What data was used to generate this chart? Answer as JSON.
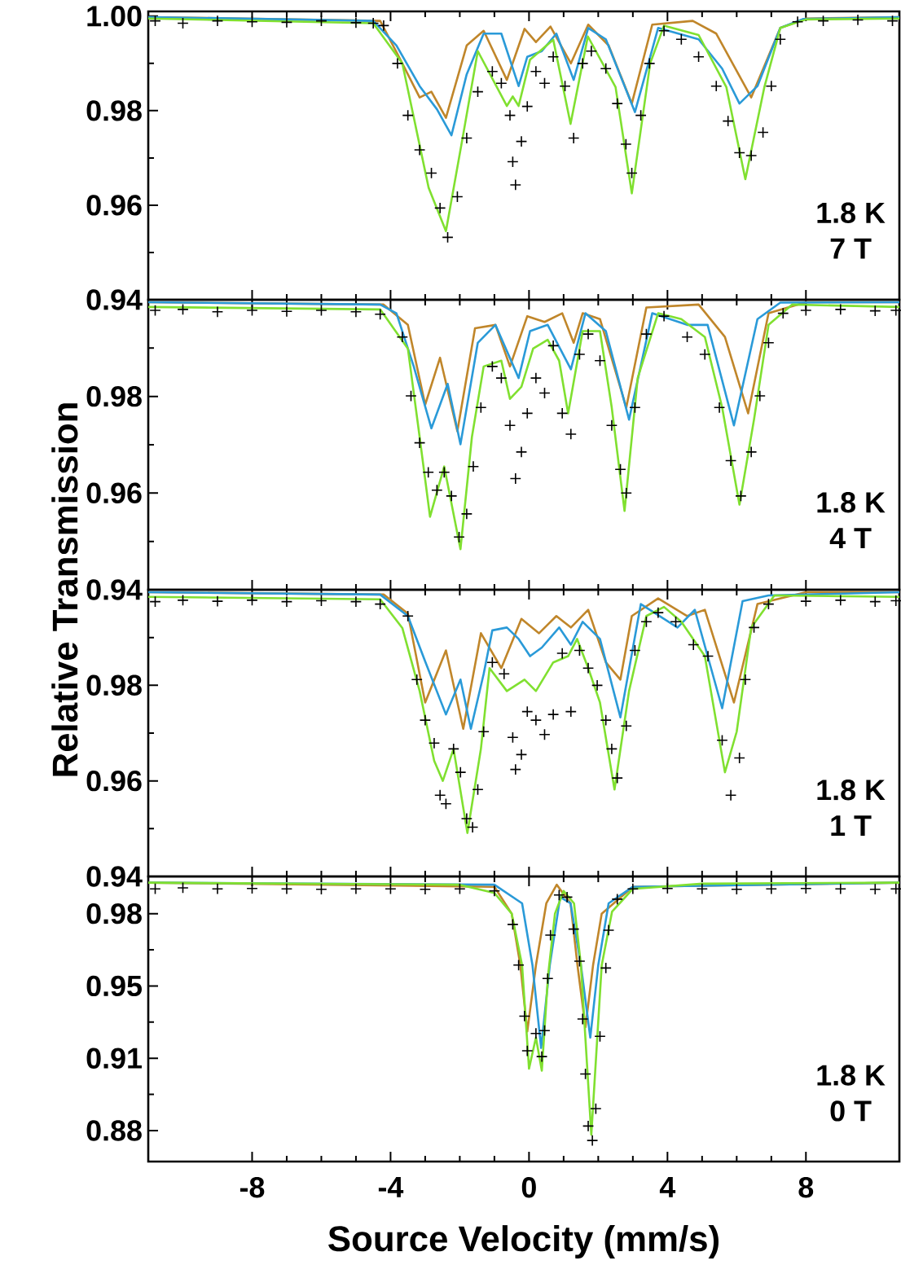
{
  "chart_data": [
    {
      "type": "line",
      "xlim": [
        -11,
        10.7
      ],
      "xticks": [
        -8,
        -4,
        0,
        4,
        8
      ],
      "ylim": [
        0.94,
        1.001
      ],
      "yticks": [
        0.94,
        0.96,
        0.98,
        {
          "value": 1.0,
          "label": "1.00"
        }
      ],
      "tick_labels": "y",
      "annotations": [
        "1.8 K",
        "7 T"
      ],
      "series": [
        {
          "type": "scatter",
          "marker": "cross",
          "color": "#000000",
          "x": [
            -10.8,
            -10,
            -9,
            -8,
            -7,
            -6,
            -5,
            -4.5,
            -4.2,
            -3.8,
            -3.5,
            -3.16,
            -2.82,
            -2.57,
            -2.35,
            -2.07,
            -1.8,
            -1.48,
            -1.06,
            -0.8,
            -0.55,
            -0.47,
            -0.39,
            -0.22,
            -0.05,
            0.2,
            0.45,
            0.7,
            1.04,
            1.29,
            1.55,
            1.8,
            2.22,
            2.55,
            2.8,
            2.97,
            3.23,
            3.48,
            3.9,
            4.4,
            4.9,
            5.41,
            5.75,
            6.08,
            6.42,
            6.76,
            7.0,
            7.26,
            7.76,
            8.5,
            9.5,
            10.5
          ],
          "values": [
            0.999,
            0.9985,
            0.999,
            0.9988,
            0.9987,
            0.999,
            0.9986,
            0.9985,
            0.998,
            0.99,
            0.979,
            0.9717,
            0.9668,
            0.9594,
            0.9532,
            0.9618,
            0.9742,
            0.984,
            0.9883,
            0.9858,
            0.979,
            0.9692,
            0.9643,
            0.9735,
            0.9809,
            0.9883,
            0.9858,
            0.9914,
            0.9852,
            0.9742,
            0.99,
            0.9926,
            0.9889,
            0.9815,
            0.9729,
            0.9668,
            0.979,
            0.99,
            0.9969,
            0.9951,
            0.9914,
            0.9852,
            0.9778,
            0.9711,
            0.9705,
            0.9754,
            0.9852,
            0.9951,
            0.9988,
            0.999,
            0.9992,
            0.999
          ]
        },
        {
          "color": "#c0862a",
          "x": [
            -11,
            -4.3,
            -3.66,
            -3.16,
            -2.82,
            -2.4,
            -1.8,
            -1.31,
            -0.64,
            -0.13,
            0.2,
            0.62,
            1.21,
            1.71,
            2.3,
            2.97,
            3.56,
            4.73,
            5.41,
            6.42,
            7.26,
            8,
            10.7
          ],
          "values": [
            0.9998,
            0.999,
            0.99,
            0.9828,
            0.984,
            0.9785,
            0.9938,
            0.9969,
            0.9865,
            0.9973,
            0.9945,
            0.9978,
            0.99,
            0.9982,
            0.9938,
            0.9815,
            0.9982,
            0.999,
            0.9963,
            0.9828,
            0.9975,
            0.9995,
            0.9998
          ]
        },
        {
          "color": "#2a9ad8",
          "x": [
            -11,
            -4.5,
            -3.83,
            -3.16,
            -2.66,
            -2.24,
            -1.8,
            -1.31,
            -0.8,
            -0.3,
            -0.05,
            0.37,
            0.79,
            1.29,
            1.71,
            2.22,
            3.06,
            3.73,
            4.9,
            5.58,
            6.08,
            6.6,
            7.26,
            7.93,
            10.7
          ],
          "values": [
            0.9998,
            0.999,
            0.9938,
            0.9852,
            0.9803,
            0.9748,
            0.9877,
            0.9963,
            0.9963,
            0.9852,
            0.9914,
            0.9926,
            0.9963,
            0.9865,
            0.9975,
            0.9951,
            0.9797,
            0.9975,
            0.9951,
            0.9889,
            0.9815,
            0.9852,
            0.9975,
            0.9994,
            0.9998
          ]
        },
        {
          "color": "#80e030",
          "x": [
            -11,
            -4.5,
            -3.66,
            -2.9,
            -2.4,
            -1.9,
            -1.48,
            -0.64,
            -0.47,
            -0.3,
            0.03,
            0.7,
            1.2,
            1.7,
            2.5,
            2.97,
            3.5,
            3.9,
            4.9,
            5.7,
            6.25,
            6.8,
            7.26,
            8,
            10.7
          ],
          "values": [
            0.9995,
            0.9985,
            0.99,
            0.9637,
            0.9545,
            0.975,
            0.9926,
            0.981,
            0.983,
            0.981,
            0.9908,
            0.995,
            0.9772,
            0.9957,
            0.985,
            0.9625,
            0.99,
            0.998,
            0.996,
            0.985,
            0.9655,
            0.985,
            0.9975,
            0.9993,
            0.9995
          ]
        }
      ]
    },
    {
      "type": "line",
      "xlim": [
        -11,
        10.7
      ],
      "xticks": [
        -8,
        -4,
        0,
        4,
        8
      ],
      "ylim": [
        0.94,
        1.0
      ],
      "yticks": [
        0.94,
        0.96,
        0.98,
        {
          "value": 1.0,
          "label": null
        }
      ],
      "tick_labels": "y",
      "annotations": [
        "1.8 K",
        "4 T"
      ],
      "series": [
        {
          "type": "scatter",
          "marker": "cross",
          "color": "#000000",
          "x": [
            -10.8,
            -10,
            -9,
            -8,
            -7,
            -6,
            -5,
            -4.3,
            -3.66,
            -3.41,
            -3.16,
            -2.91,
            -2.66,
            -2.45,
            -2.24,
            -2.02,
            -1.8,
            -1.61,
            -1.39,
            -1.06,
            -0.8,
            -0.55,
            -0.39,
            -0.22,
            -0.05,
            0.2,
            0.45,
            0.7,
            0.96,
            1.21,
            1.46,
            1.71,
            2.05,
            2.39,
            2.64,
            2.81,
            3.06,
            3.39,
            3.9,
            4.57,
            5.08,
            5.5,
            5.83,
            6.12,
            6.42,
            6.67,
            6.92,
            7.34,
            8,
            9,
            10,
            10.6
          ],
          "values": [
            0.9978,
            0.998,
            0.9975,
            0.9978,
            0.9976,
            0.9978,
            0.9975,
            0.997,
            0.9923,
            0.9801,
            0.9704,
            0.9643,
            0.9606,
            0.9643,
            0.9594,
            0.9509,
            0.9557,
            0.9655,
            0.9777,
            0.9862,
            0.9838,
            0.974,
            0.963,
            0.9685,
            0.9765,
            0.9838,
            0.9807,
            0.9905,
            0.9765,
            0.9722,
            0.9887,
            0.9929,
            0.9874,
            0.974,
            0.9649,
            0.96,
            0.9777,
            0.9929,
            0.9966,
            0.9923,
            0.9887,
            0.9777,
            0.9667,
            0.9594,
            0.9685,
            0.9801,
            0.9911,
            0.9972,
            0.9978,
            0.998,
            0.9977,
            0.9978
          ]
        },
        {
          "color": "#c0862a",
          "x": [
            -11,
            -4.2,
            -3.5,
            -3.0,
            -2.57,
            -2.07,
            -1.56,
            -0.97,
            -0.55,
            -0.05,
            0.45,
            0.96,
            1.29,
            1.55,
            2.05,
            2.81,
            3.39,
            4.9,
            5.66,
            6.33,
            6.92,
            8,
            10.7
          ],
          "values": [
            0.9995,
            0.999,
            0.9948,
            0.9783,
            0.988,
            0.9728,
            0.9941,
            0.9948,
            0.9862,
            0.9966,
            0.9954,
            0.9972,
            0.9911,
            0.9972,
            0.996,
            0.9777,
            0.9984,
            0.999,
            0.9923,
            0.9765,
            0.9972,
            0.9995,
            0.9995
          ]
        },
        {
          "color": "#2a9ad8",
          "x": [
            -11,
            -4.3,
            -3.83,
            -3.33,
            -2.82,
            -2.35,
            -1.98,
            -1.48,
            -0.97,
            -0.3,
            0.03,
            0.54,
            1.21,
            1.63,
            2.22,
            2.89,
            3.56,
            4.57,
            5.16,
            5.92,
            6.6,
            7.26,
            10.7
          ],
          "values": [
            0.9995,
            0.999,
            0.9972,
            0.9862,
            0.9734,
            0.9826,
            0.9701,
            0.9911,
            0.9948,
            0.9838,
            0.9935,
            0.9948,
            0.9856,
            0.9972,
            0.9935,
            0.9752,
            0.9972,
            0.9948,
            0.9948,
            0.974,
            0.996,
            0.9994,
            0.9995
          ]
        },
        {
          "color": "#80e030",
          "x": [
            -11,
            -4.3,
            -3.5,
            -3.16,
            -2.86,
            -2.45,
            -1.98,
            -1.65,
            -1.31,
            -0.8,
            -0.55,
            -0.22,
            0.12,
            0.54,
            0.87,
            1.13,
            1.55,
            2.05,
            2.39,
            2.76,
            3.14,
            3.73,
            4.4,
            5.08,
            5.58,
            6.08,
            6.5,
            6.92,
            7.6,
            10.7
          ],
          "values": [
            0.9985,
            0.998,
            0.9899,
            0.9716,
            0.9551,
            0.9655,
            0.9484,
            0.9716,
            0.9862,
            0.9874,
            0.9795,
            0.982,
            0.9899,
            0.9917,
            0.9874,
            0.9765,
            0.9935,
            0.9935,
            0.9777,
            0.9563,
            0.9838,
            0.9972,
            0.996,
            0.9923,
            0.9777,
            0.9576,
            0.9752,
            0.9948,
            0.999,
            0.9985
          ]
        }
      ]
    },
    {
      "type": "line",
      "xlim": [
        -11,
        10.7
      ],
      "xticks": [
        -8,
        -4,
        0,
        4,
        8
      ],
      "ylim": [
        0.94,
        1.0
      ],
      "yticks": [
        0.94,
        0.96,
        0.98,
        {
          "value": 1.0,
          "label": null
        }
      ],
      "tick_labels": "y",
      "ylabel": "Relative Transmission",
      "annotations": [
        "1.8 K",
        "1 T"
      ],
      "series": [
        {
          "type": "scatter",
          "marker": "cross",
          "color": "#000000",
          "x": [
            -10.8,
            -10,
            -9,
            -8,
            -7,
            -6,
            -5,
            -4.3,
            -3.5,
            -3.24,
            -3.0,
            -2.74,
            -2.57,
            -2.4,
            -2.18,
            -1.98,
            -1.8,
            -1.63,
            -1.48,
            -1.31,
            -1.06,
            -0.72,
            -0.47,
            -0.39,
            -0.22,
            -0.05,
            0.2,
            0.45,
            0.7,
            0.96,
            1.21,
            1.46,
            1.71,
            1.97,
            2.22,
            2.39,
            2.55,
            2.81,
            3.06,
            3.39,
            3.73,
            4.24,
            4.75,
            5.17,
            5.58,
            5.83,
            6.08,
            6.25,
            6.5,
            6.92,
            8,
            9,
            10,
            10.6
          ],
          "values": [
            0.9975,
            0.9978,
            0.9976,
            0.9978,
            0.9975,
            0.9977,
            0.9975,
            0.997,
            0.9945,
            0.9812,
            0.9727,
            0.9679,
            0.957,
            0.9552,
            0.9667,
            0.9618,
            0.9521,
            0.9503,
            0.9582,
            0.9703,
            0.9848,
            0.9824,
            0.9691,
            0.9624,
            0.9655,
            0.9745,
            0.9727,
            0.9697,
            0.9739,
            0.9867,
            0.9745,
            0.9873,
            0.9836,
            0.98,
            0.9727,
            0.9667,
            0.9606,
            0.9715,
            0.9873,
            0.9933,
            0.9952,
            0.9933,
            0.9885,
            0.9861,
            0.9685,
            0.957,
            0.9648,
            0.9812,
            0.9921,
            0.997,
            0.9976,
            0.9978,
            0.9975,
            0.9977
          ]
        },
        {
          "color": "#c0862a",
          "x": [
            -11,
            -4.2,
            -3.5,
            -3.0,
            -2.4,
            -1.9,
            -1.39,
            -0.8,
            -0.22,
            0.29,
            0.79,
            1.21,
            1.71,
            2.22,
            2.64,
            2.97,
            3.73,
            4.57,
            5.08,
            5.92,
            6.6,
            8,
            10.7
          ],
          "values": [
            0.9995,
            0.999,
            0.995,
            0.9764,
            0.9873,
            0.9709,
            0.9909,
            0.9836,
            0.9939,
            0.9909,
            0.9945,
            0.9921,
            0.9958,
            0.9848,
            0.9812,
            0.9945,
            0.9982,
            0.9945,
            0.9958,
            0.9764,
            0.997,
            0.9995,
            0.9995
          ]
        },
        {
          "color": "#2a9ad8",
          "x": [
            -11,
            -4.3,
            -3.5,
            -3.0,
            -2.4,
            -1.98,
            -1.68,
            -1.31,
            -1.06,
            -0.64,
            -0.3,
            0.03,
            0.37,
            0.87,
            1.21,
            1.55,
            2.05,
            2.64,
            3.23,
            4.29,
            4.79,
            5.58,
            6.17,
            6.92,
            10.7
          ],
          "values": [
            0.9995,
            0.999,
            0.9945,
            0.985,
            0.9739,
            0.9812,
            0.9709,
            0.9824,
            0.9915,
            0.9921,
            0.9897,
            0.9861,
            0.9879,
            0.9921,
            0.9885,
            0.9933,
            0.9897,
            0.9733,
            0.997,
            0.9921,
            0.9958,
            0.9752,
            0.9976,
            0.9988,
            0.9995
          ]
        },
        {
          "color": "#80e030",
          "x": [
            -11,
            -4.3,
            -3.66,
            -3.16,
            -2.74,
            -2.49,
            -2.18,
            -1.78,
            -1.39,
            -1.14,
            -0.64,
            -0.13,
            0.2,
            0.7,
            1.13,
            1.39,
            1.71,
            2.05,
            2.47,
            2.89,
            3.39,
            3.9,
            4.4,
            5.08,
            5.66,
            6.0,
            6.42,
            7.09,
            10.7
          ],
          "values": [
            0.9985,
            0.998,
            0.992,
            0.9788,
            0.9642,
            0.96,
            0.9667,
            0.9491,
            0.9667,
            0.9836,
            0.9788,
            0.9812,
            0.9788,
            0.9848,
            0.9861,
            0.9897,
            0.9836,
            0.9764,
            0.9582,
            0.9788,
            0.9945,
            0.9964,
            0.9933,
            0.9861,
            0.9618,
            0.9703,
            0.9921,
            0.9988,
            0.9985
          ]
        }
      ]
    },
    {
      "type": "line",
      "xlim": [
        -11,
        10.7
      ],
      "xticks": [
        -8,
        -4,
        0,
        4,
        8
      ],
      "ylim": [
        0.865,
        1.003
      ],
      "yticks": [
        0.88,
        {
          "value": 0.915,
          "label": "0.91"
        },
        0.95,
        {
          "value": 0.985,
          "label": "0.98"
        }
      ],
      "xlabel": "Source Velocity (mm/s)",
      "annotations": [
        "1.8 K",
        "0 T"
      ],
      "series": [
        {
          "type": "scatter",
          "marker": "cross",
          "color": "#000000",
          "x": [
            -10.8,
            -10,
            -9,
            -8,
            -7,
            -6,
            -5,
            -4,
            -3,
            -2,
            -1,
            -0.47,
            -0.3,
            -0.13,
            -0.05,
            0.2,
            0.37,
            0.45,
            0.54,
            0.62,
            0.87,
            1.1,
            1.29,
            1.46,
            1.55,
            1.63,
            1.71,
            1.83,
            1.93,
            2.05,
            2.22,
            2.3,
            2.55,
            3,
            4,
            5,
            6,
            7,
            8,
            9,
            10,
            10.6
          ],
          "values": [
            0.997,
            0.9975,
            0.997,
            0.9972,
            0.997,
            0.9968,
            0.997,
            0.997,
            0.9968,
            0.997,
            0.996,
            0.9798,
            0.9601,
            0.9354,
            0.9186,
            0.927,
            0.9158,
            0.9284,
            0.9536,
            0.9746,
            0.994,
            0.993,
            0.9775,
            0.962,
            0.934,
            0.9074,
            0.8822,
            0.8752,
            0.8906,
            0.9256,
            0.9587,
            0.977,
            0.992,
            0.997,
            0.9972,
            0.997,
            0.9968,
            0.997,
            0.9972,
            0.997,
            0.9968,
            0.997
          ]
        },
        {
          "color": "#c0862a",
          "x": [
            -11,
            -1,
            -0.5,
            -0.25,
            -0.05,
            0.2,
            0.5,
            0.8,
            1.2,
            1.4,
            1.63,
            1.85,
            2.1,
            3,
            10.7
          ],
          "values": [
            1.0,
            0.998,
            0.985,
            0.96,
            0.928,
            0.96,
            0.99,
            0.999,
            0.99,
            0.96,
            0.93,
            0.96,
            0.985,
            0.998,
            1.0
          ]
        },
        {
          "color": "#2a9ad8",
          "x": [
            -11,
            -1,
            -0.2,
            0.1,
            0.35,
            0.6,
            0.9,
            1.2,
            1.5,
            1.77,
            2.0,
            2.3,
            3,
            10.7
          ],
          "values": [
            1.0,
            0.999,
            0.99,
            0.96,
            0.92,
            0.96,
            0.993,
            0.99,
            0.96,
            0.925,
            0.96,
            0.99,
            0.998,
            1.0
          ]
        },
        {
          "color": "#80e030",
          "x": [
            -11,
            -2,
            -1,
            -0.5,
            -0.2,
            0.0,
            0.2,
            0.37,
            0.55,
            0.75,
            1.0,
            1.3,
            1.5,
            1.8,
            2.1,
            2.4,
            3,
            5,
            10.7
          ],
          "values": [
            1.0,
            0.999,
            0.995,
            0.985,
            0.96,
            0.91,
            0.925,
            0.909,
            0.955,
            0.985,
            0.996,
            0.99,
            0.96,
            0.878,
            0.96,
            0.986,
            0.997,
            0.9995,
            1.0
          ]
        }
      ]
    }
  ]
}
